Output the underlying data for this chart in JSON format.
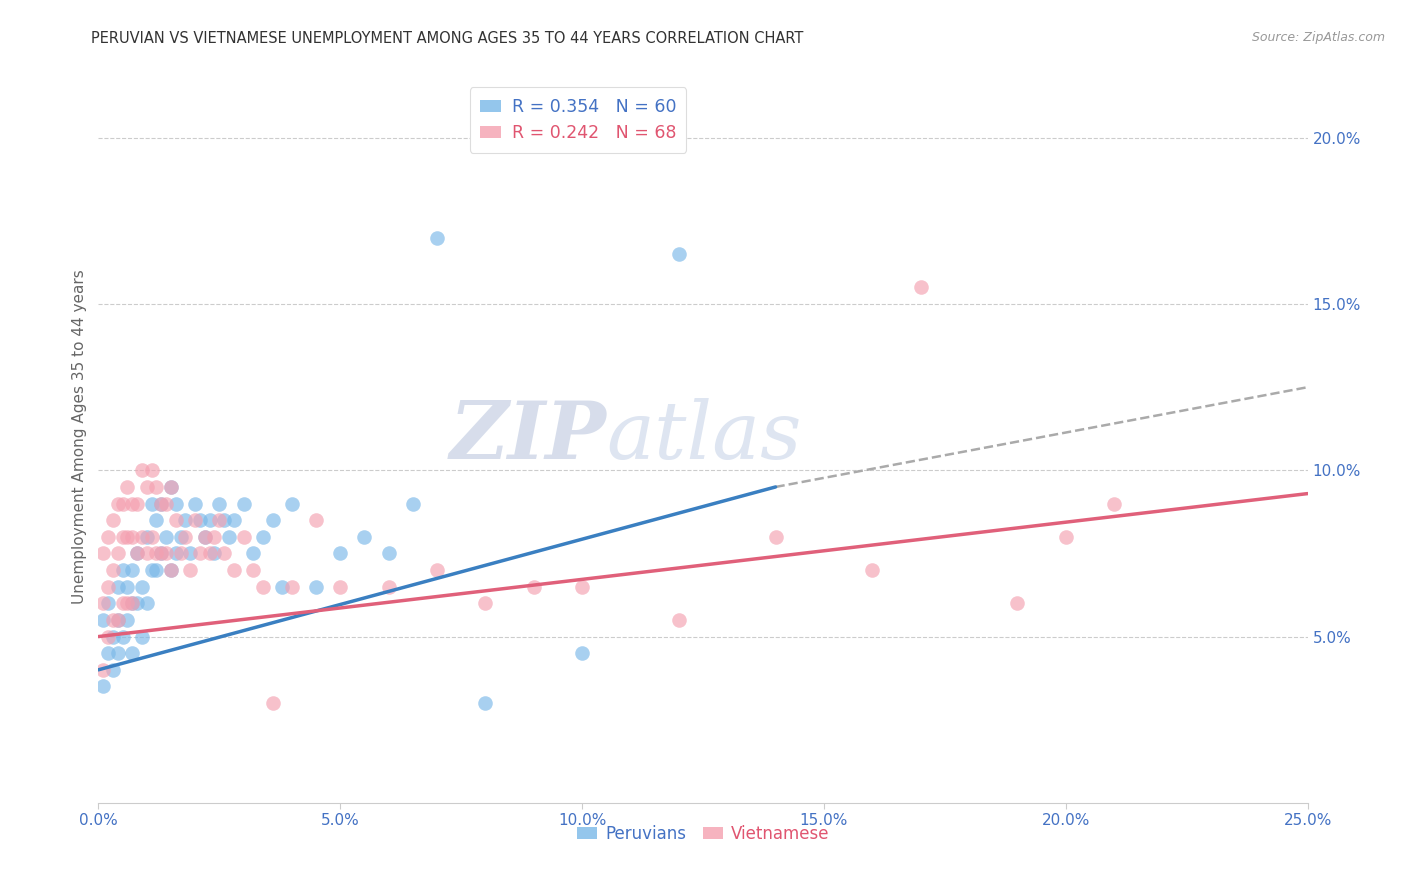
{
  "title": "PERUVIAN VS VIETNAMESE UNEMPLOYMENT AMONG AGES 35 TO 44 YEARS CORRELATION CHART",
  "source": "Source: ZipAtlas.com",
  "ylabel": "Unemployment Among Ages 35 to 44 years",
  "xlim": [
    0.0,
    0.25
  ],
  "ylim": [
    0.0,
    0.22
  ],
  "xticks": [
    0.0,
    0.05,
    0.1,
    0.15,
    0.2,
    0.25
  ],
  "xticklabels": [
    "0.0%",
    "5.0%",
    "10.0%",
    "15.0%",
    "20.0%",
    "25.0%"
  ],
  "ytick_right": [
    0.05,
    0.1,
    0.15,
    0.2
  ],
  "yticklabels_right": [
    "5.0%",
    "10.0%",
    "15.0%",
    "20.0%"
  ],
  "peruvian_color": "#7ab8e8",
  "vietnamese_color": "#f4a0b0",
  "peruvian_line_color": "#3a7fc1",
  "vietnamese_line_color": "#e0607a",
  "peruvian_R": 0.354,
  "peruvian_N": 60,
  "vietnamese_R": 0.242,
  "vietnamese_N": 68,
  "watermark_zip": "ZIP",
  "watermark_atlas": "atlas",
  "background_color": "#ffffff",
  "grid_color": "#cccccc",
  "peruvian_x": [
    0.001,
    0.001,
    0.002,
    0.002,
    0.003,
    0.003,
    0.004,
    0.004,
    0.004,
    0.005,
    0.005,
    0.006,
    0.006,
    0.007,
    0.007,
    0.007,
    0.008,
    0.008,
    0.009,
    0.009,
    0.01,
    0.01,
    0.011,
    0.011,
    0.012,
    0.012,
    0.013,
    0.013,
    0.014,
    0.015,
    0.015,
    0.016,
    0.016,
    0.017,
    0.018,
    0.019,
    0.02,
    0.021,
    0.022,
    0.023,
    0.024,
    0.025,
    0.026,
    0.027,
    0.028,
    0.03,
    0.032,
    0.034,
    0.036,
    0.038,
    0.04,
    0.045,
    0.05,
    0.055,
    0.06,
    0.065,
    0.07,
    0.08,
    0.1,
    0.12
  ],
  "peruvian_y": [
    0.055,
    0.035,
    0.06,
    0.045,
    0.05,
    0.04,
    0.065,
    0.055,
    0.045,
    0.07,
    0.05,
    0.065,
    0.055,
    0.07,
    0.06,
    0.045,
    0.075,
    0.06,
    0.065,
    0.05,
    0.08,
    0.06,
    0.09,
    0.07,
    0.085,
    0.07,
    0.09,
    0.075,
    0.08,
    0.095,
    0.07,
    0.09,
    0.075,
    0.08,
    0.085,
    0.075,
    0.09,
    0.085,
    0.08,
    0.085,
    0.075,
    0.09,
    0.085,
    0.08,
    0.085,
    0.09,
    0.075,
    0.08,
    0.085,
    0.065,
    0.09,
    0.065,
    0.075,
    0.08,
    0.075,
    0.09,
    0.17,
    0.03,
    0.045,
    0.165
  ],
  "vietnamese_x": [
    0.001,
    0.001,
    0.001,
    0.002,
    0.002,
    0.002,
    0.003,
    0.003,
    0.003,
    0.004,
    0.004,
    0.004,
    0.005,
    0.005,
    0.005,
    0.006,
    0.006,
    0.006,
    0.007,
    0.007,
    0.007,
    0.008,
    0.008,
    0.009,
    0.009,
    0.01,
    0.01,
    0.011,
    0.011,
    0.012,
    0.012,
    0.013,
    0.013,
    0.014,
    0.014,
    0.015,
    0.015,
    0.016,
    0.017,
    0.018,
    0.019,
    0.02,
    0.021,
    0.022,
    0.023,
    0.024,
    0.025,
    0.026,
    0.028,
    0.03,
    0.032,
    0.034,
    0.036,
    0.04,
    0.045,
    0.05,
    0.06,
    0.07,
    0.08,
    0.09,
    0.1,
    0.12,
    0.14,
    0.16,
    0.17,
    0.19,
    0.2,
    0.21
  ],
  "vietnamese_y": [
    0.075,
    0.06,
    0.04,
    0.08,
    0.065,
    0.05,
    0.085,
    0.07,
    0.055,
    0.09,
    0.075,
    0.055,
    0.09,
    0.08,
    0.06,
    0.095,
    0.08,
    0.06,
    0.09,
    0.08,
    0.06,
    0.09,
    0.075,
    0.1,
    0.08,
    0.095,
    0.075,
    0.1,
    0.08,
    0.095,
    0.075,
    0.09,
    0.075,
    0.09,
    0.075,
    0.095,
    0.07,
    0.085,
    0.075,
    0.08,
    0.07,
    0.085,
    0.075,
    0.08,
    0.075,
    0.08,
    0.085,
    0.075,
    0.07,
    0.08,
    0.07,
    0.065,
    0.03,
    0.065,
    0.085,
    0.065,
    0.065,
    0.07,
    0.06,
    0.065,
    0.065,
    0.055,
    0.08,
    0.07,
    0.155,
    0.06,
    0.08,
    0.09
  ]
}
